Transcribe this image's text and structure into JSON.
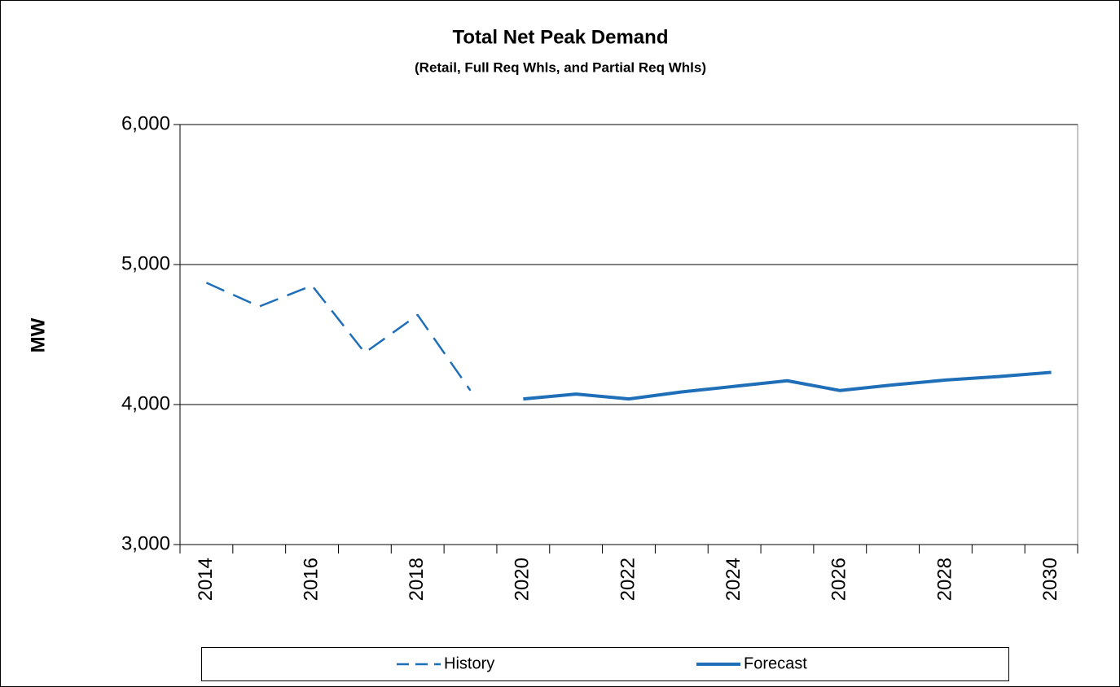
{
  "chart_data": {
    "type": "line",
    "title": "Total Net Peak Demand",
    "subtitle": "(Retail, Full Req Whls, and Partial Req Whls)",
    "y_label": "MW",
    "categories": [
      "2014",
      null,
      "2016",
      null,
      "2018",
      null,
      "2020",
      null,
      "2022",
      null,
      "2024",
      null,
      "2026",
      null,
      "2028",
      null,
      "2030"
    ],
    "series": [
      {
        "name": "History",
        "color": "#1f6fb8",
        "dash": true,
        "values": [
          4870,
          4700,
          4850,
          4370,
          4640,
          4100,
          null,
          null,
          null,
          null,
          null,
          null,
          null,
          null,
          null,
          null,
          null
        ]
      },
      {
        "name": "Forecast",
        "color": "#1f6fb8",
        "dash": false,
        "values": [
          null,
          null,
          null,
          null,
          null,
          null,
          4040,
          4075,
          4040,
          4090,
          4130,
          4170,
          4100,
          4140,
          4175,
          4200,
          4230
        ]
      }
    ],
    "ylim": [
      3000,
      6000
    ],
    "yticks": [
      {
        "value": 3000,
        "label": "3,000"
      },
      {
        "value": 4000,
        "label": "4,000"
      },
      {
        "value": 5000,
        "label": "5,000"
      },
      {
        "value": 6000,
        "label": "6,000"
      }
    ],
    "grid": true,
    "legend": "bottom"
  }
}
